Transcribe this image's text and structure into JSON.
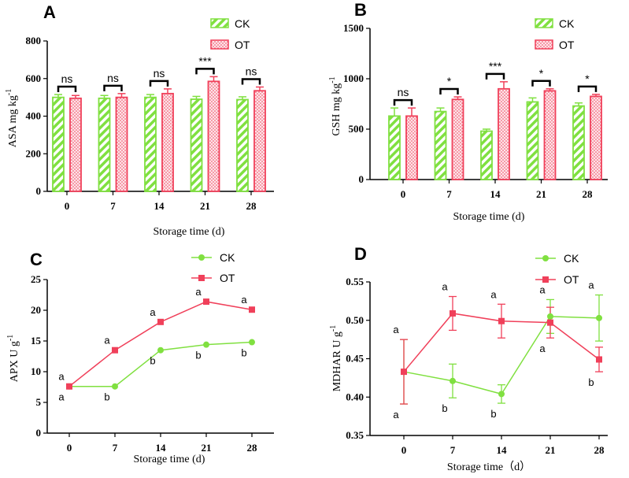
{
  "colors": {
    "ck": "#80e040",
    "ot": "#f0405a"
  },
  "chart_data": [
    {
      "panel": "A",
      "type": "bar",
      "xlabel": "Storage time (d)",
      "ylabel": "ASA mg kg",
      "ylabel_sup": "-1",
      "categories": [
        "0",
        "7",
        "14",
        "21",
        "28"
      ],
      "ylim": [
        0,
        800
      ],
      "yticks": [
        "0",
        "200",
        "400",
        "600",
        "800"
      ],
      "series": [
        {
          "name": "CK",
          "values": [
            500,
            495,
            500,
            490,
            488
          ],
          "errors": [
            15,
            15,
            15,
            15,
            15
          ]
        },
        {
          "name": "OT",
          "values": [
            495,
            500,
            520,
            585,
            535
          ],
          "errors": [
            15,
            20,
            25,
            25,
            20
          ]
        }
      ],
      "significance": [
        "ns",
        "ns",
        "ns",
        "***",
        "ns"
      ]
    },
    {
      "panel": "B",
      "type": "bar",
      "xlabel": "Storage time (d)",
      "ylabel": "GSH mg kg",
      "ylabel_sup": "-1",
      "categories": [
        "0",
        "7",
        "14",
        "21",
        "28"
      ],
      "ylim": [
        0,
        1500
      ],
      "yticks": [
        "0",
        "500",
        "1000",
        "1500"
      ],
      "series": [
        {
          "name": "CK",
          "values": [
            630,
            675,
            480,
            770,
            730
          ],
          "errors": [
            80,
            35,
            20,
            40,
            30
          ]
        },
        {
          "name": "OT",
          "values": [
            630,
            795,
            900,
            880,
            825
          ],
          "errors": [
            80,
            25,
            70,
            20,
            20
          ]
        }
      ],
      "significance": [
        "ns",
        "*",
        "***",
        "*",
        "*"
      ]
    },
    {
      "panel": "C",
      "type": "line",
      "xlabel": "Storage time (d)",
      "ylabel": "APX U g",
      "ylabel_sup": "-1",
      "x": [
        "0",
        "7",
        "14",
        "21",
        "28"
      ],
      "ylim": [
        0,
        25
      ],
      "yticks": [
        "0",
        "5",
        "10",
        "15",
        "20",
        "25"
      ],
      "series": [
        {
          "name": "CK",
          "marker": "circle",
          "values": [
            7.6,
            7.6,
            13.5,
            14.4,
            14.8
          ],
          "labels": [
            "a",
            "b",
            "b",
            "b",
            "b"
          ]
        },
        {
          "name": "OT",
          "marker": "square",
          "values": [
            7.6,
            13.5,
            18.1,
            21.4,
            20.1
          ],
          "labels": [
            "a",
            "a",
            "a",
            "a",
            "a"
          ]
        }
      ]
    },
    {
      "panel": "D",
      "type": "line",
      "xlabel": "Storage time（d）",
      "ylabel": "MDHAR  U g",
      "ylabel_sup": "-1",
      "x": [
        "0",
        "7",
        "14",
        "21",
        "28"
      ],
      "ylim": [
        0.35,
        0.55
      ],
      "yticks": [
        "0.35",
        "0.40",
        "0.45",
        "0.50",
        "0.55"
      ],
      "series": [
        {
          "name": "CK",
          "marker": "circle",
          "values": [
            0.433,
            0.421,
            0.404,
            0.505,
            0.503
          ],
          "errors": [
            0.042,
            0.022,
            0.012,
            0.022,
            0.03
          ],
          "labels": [
            "a",
            "b",
            "b",
            "a",
            "a"
          ]
        },
        {
          "name": "OT",
          "marker": "square",
          "values": [
            0.433,
            0.509,
            0.499,
            0.497,
            0.449
          ],
          "errors": [
            0.042,
            0.022,
            0.022,
            0.02,
            0.016
          ],
          "labels": [
            "a",
            "a",
            "a",
            "a",
            "b"
          ]
        }
      ]
    }
  ]
}
